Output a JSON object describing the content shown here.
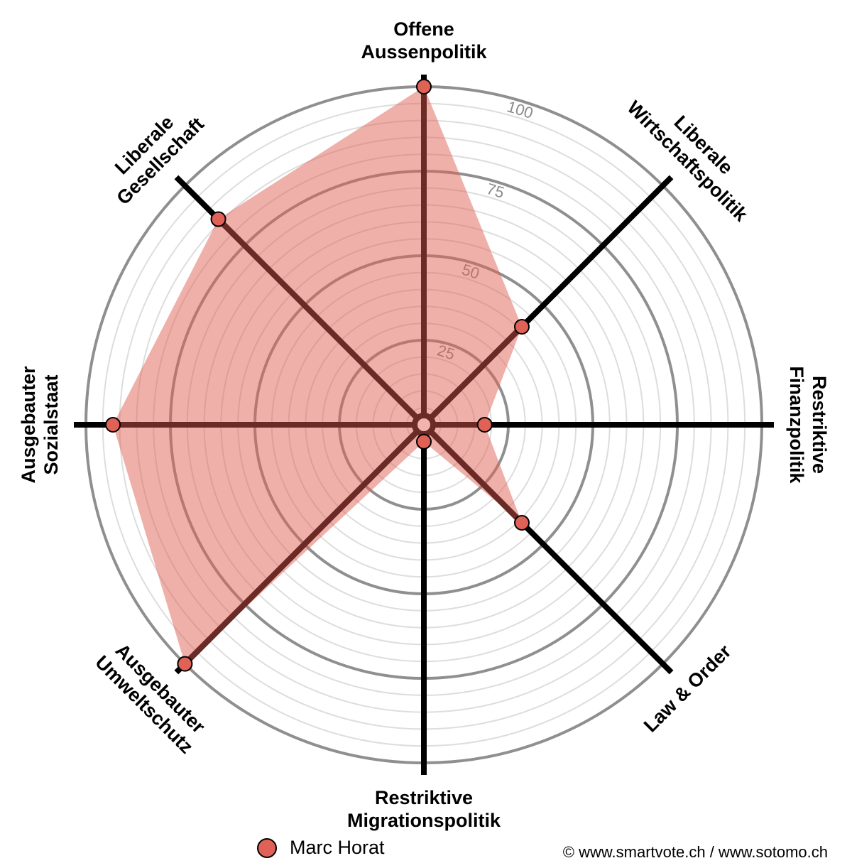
{
  "chart_data": {
    "type": "radar",
    "axes": [
      "Offene Aussenpolitik",
      "Liberale Wirtschaftspolitik",
      "Restriktive Finanzpolitik",
      "Law & Order",
      "Restriktive Migrationspolitik",
      "Ausgebauter Umweltschutz",
      "Ausgebauter Sozialstaat",
      "Liberale Gesellschaft"
    ],
    "axis_label_lines": [
      [
        "Offene",
        "Aussenpolitik"
      ],
      [
        "Liberale",
        "Wirtschaftspolitik"
      ],
      [
        "Restriktive",
        "Finanzpolitik"
      ],
      [
        "Law & Order"
      ],
      [
        "Restriktive",
        "Migrationspolitik"
      ],
      [
        "Ausgebauter",
        "Umweltschutz"
      ],
      [
        "Ausgebauter",
        "Sozialstaat"
      ],
      [
        "Liberale",
        "Gesellschaft"
      ]
    ],
    "range": [
      0,
      100
    ],
    "ticks": [
      25,
      50,
      75,
      100
    ],
    "tick_labels": [
      "25",
      "50",
      "75",
      "100"
    ],
    "series": [
      {
        "name": "Marc Horat",
        "color": "#e06256",
        "values": [
          100,
          41,
          18,
          41,
          5,
          100,
          92,
          86
        ]
      }
    ]
  },
  "legend": {
    "label": "Marc Horat",
    "color": "#e06256"
  },
  "credit": "© www.smartvote.ch / www.sotomo.ch"
}
